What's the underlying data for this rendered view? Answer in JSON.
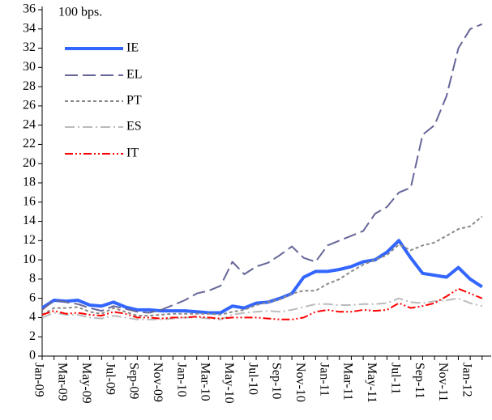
{
  "chart_data": {
    "type": "line",
    "annotation": "100 bps.",
    "categories": [
      "Jan-09",
      null,
      "Mar-09",
      null,
      "May-09",
      null,
      "Jul-09",
      null,
      "Sep-09",
      null,
      "Nov-09",
      null,
      "Jan-10",
      null,
      "Mar-10",
      null,
      "May-10",
      null,
      "Jul-10",
      null,
      "Sep-10",
      null,
      "Nov-10",
      null,
      "Jan-11",
      null,
      "Mar-11",
      null,
      "May-11",
      null,
      "Jul-11",
      null,
      "Sep-11",
      null,
      "Nov-11",
      null,
      "Jan-12",
      null
    ],
    "series": [
      {
        "name": "IE",
        "color": "#3366ff",
        "values": [
          5.0,
          5.8,
          5.7,
          5.8,
          5.3,
          5.2,
          5.6,
          5.1,
          4.8,
          4.8,
          4.7,
          4.7,
          4.7,
          4.6,
          4.5,
          4.5,
          5.2,
          5.0,
          5.5,
          5.6,
          6.0,
          6.5,
          8.2,
          8.8,
          8.8,
          9.0,
          9.3,
          9.8,
          10.0,
          10.8,
          12.0,
          10.2,
          8.6,
          8.4,
          8.2,
          9.2,
          8.0,
          7.2
        ]
      },
      {
        "name": "EL",
        "color": "#666699",
        "values": [
          4.8,
          5.8,
          5.6,
          5.4,
          5.0,
          4.7,
          5.2,
          4.9,
          4.6,
          4.5,
          4.8,
          5.3,
          5.8,
          6.5,
          6.8,
          7.3,
          9.8,
          8.5,
          9.3,
          9.7,
          10.5,
          11.4,
          10.2,
          9.8,
          11.5,
          12.0,
          12.5,
          13.0,
          14.8,
          15.5,
          17.0,
          17.5,
          23.0,
          24.0,
          27.0,
          32.0,
          34.0,
          34.5
        ]
      },
      {
        "name": "PT",
        "color": "#888888",
        "values": [
          4.3,
          5.0,
          5.0,
          5.1,
          4.6,
          4.4,
          5.0,
          4.6,
          4.2,
          4.2,
          4.3,
          4.4,
          4.4,
          4.4,
          4.4,
          4.3,
          4.6,
          4.8,
          5.3,
          5.6,
          5.9,
          6.5,
          6.8,
          6.8,
          7.5,
          8.0,
          8.8,
          9.5,
          10.0,
          10.5,
          11.6,
          11.0,
          11.5,
          11.8,
          12.5,
          13.2,
          13.5,
          14.5
        ]
      },
      {
        "name": "ES",
        "color": "#bbbbbb",
        "values": [
          4.0,
          4.5,
          4.3,
          4.3,
          4.0,
          3.9,
          4.2,
          4.0,
          3.8,
          3.8,
          3.8,
          3.9,
          4.0,
          4.0,
          3.9,
          3.8,
          4.3,
          4.5,
          4.6,
          4.7,
          4.6,
          4.8,
          5.1,
          5.4,
          5.4,
          5.3,
          5.3,
          5.4,
          5.4,
          5.5,
          6.0,
          5.6,
          5.5,
          5.7,
          5.8,
          6.0,
          5.5,
          5.2
        ]
      },
      {
        "name": "IT",
        "color": "#ff0000",
        "values": [
          4.3,
          4.7,
          4.4,
          4.5,
          4.3,
          4.2,
          4.6,
          4.4,
          4.0,
          4.0,
          3.9,
          4.0,
          4.0,
          4.1,
          4.0,
          3.9,
          4.0,
          4.0,
          4.0,
          3.9,
          3.8,
          3.8,
          4.0,
          4.6,
          4.8,
          4.6,
          4.6,
          4.8,
          4.7,
          4.8,
          5.5,
          5.0,
          5.2,
          5.5,
          6.2,
          7.0,
          6.5,
          6.0
        ]
      }
    ],
    "ylim": [
      0,
      36
    ],
    "yticks": [
      0,
      2,
      4,
      6,
      8,
      10,
      12,
      14,
      16,
      18,
      20,
      22,
      24,
      26,
      28,
      30,
      32,
      34,
      36
    ]
  }
}
